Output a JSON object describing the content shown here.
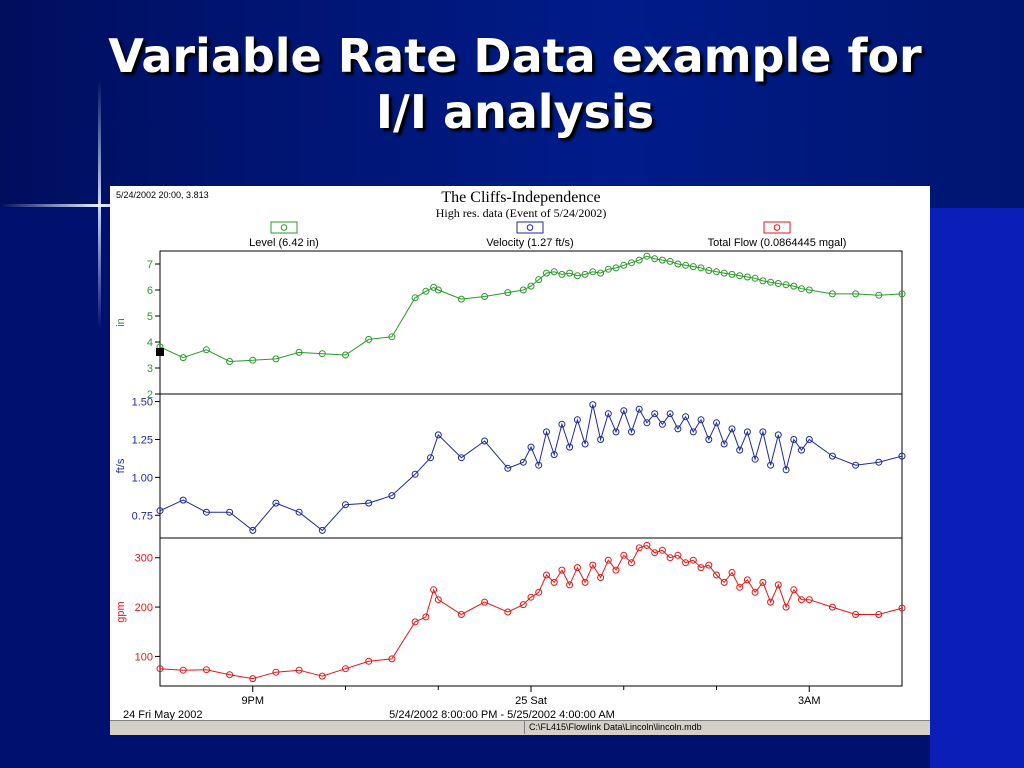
{
  "slide": {
    "title_line1": "Variable Rate Data example for",
    "title_line2": "I/I analysis"
  },
  "colors": {
    "level": "#2a9a2a",
    "velocity": "#1c2a9a",
    "flow": "#e01818"
  },
  "window": {
    "cursor_readout": "5/24/2002 20:00, 3.813",
    "status_path": "C:\\FL415\\Flowlink Data\\Lincoln\\lincoln.mdb"
  },
  "chart_data": {
    "type": "line",
    "title": "The Cliffs-Independence",
    "subtitle": "High res. data (Event of 5/24/2002)",
    "legend": [
      {
        "label": "Level (6.42 in)",
        "color": "#2a9a2a"
      },
      {
        "label": "Velocity (1.27 ft/s)",
        "color": "#1c2a9a"
      },
      {
        "label": "Total Flow (0.0864445 mgal)",
        "color": "#e01818"
      }
    ],
    "x_start_label": "24 Fri May 2002",
    "x_range_label": "5/24/2002 8:00:00 PM - 5/25/2002 4:00:00 AM",
    "xlim": [
      "2002-05-24 20:00",
      "2002-05-25 04:00"
    ],
    "x_ticks": [
      {
        "time": "2002-05-24 21:00",
        "label": "9PM"
      },
      {
        "time": "2002-05-25 00:00",
        "label": "25 Sat"
      },
      {
        "time": "2002-05-25 03:00",
        "label": "3AM"
      }
    ],
    "x_minor_ticks": [
      "2002-05-24 22:00",
      "2002-05-24 23:00",
      "2002-05-25 01:00",
      "2002-05-25 02:00"
    ],
    "panels": [
      {
        "name": "Level",
        "ylabel": "in",
        "ylim": [
          2,
          7.5
        ],
        "yticks": [
          {
            "value": 2,
            "label": "2"
          },
          {
            "value": 3,
            "label": "3"
          },
          {
            "value": 4,
            "label": "4"
          },
          {
            "value": 5,
            "label": "5"
          },
          {
            "value": 6,
            "label": "6"
          },
          {
            "value": 7,
            "label": "7"
          }
        ],
        "color": "#2a9a2a",
        "points": [
          [
            "2002-05-24 20:00",
            3.81
          ],
          [
            "2002-05-24 20:15",
            3.4
          ],
          [
            "2002-05-24 20:30",
            3.7
          ],
          [
            "2002-05-24 20:45",
            3.25
          ],
          [
            "2002-05-24 21:00",
            3.3
          ],
          [
            "2002-05-24 21:15",
            3.35
          ],
          [
            "2002-05-24 21:30",
            3.6
          ],
          [
            "2002-05-24 21:45",
            3.55
          ],
          [
            "2002-05-24 22:00",
            3.5
          ],
          [
            "2002-05-24 22:15",
            4.1
          ],
          [
            "2002-05-24 22:30",
            4.2
          ],
          [
            "2002-05-24 22:45",
            5.7
          ],
          [
            "2002-05-24 22:52",
            5.95
          ],
          [
            "2002-05-24 22:57",
            6.1
          ],
          [
            "2002-05-24 23:00",
            6.0
          ],
          [
            "2002-05-24 23:15",
            5.65
          ],
          [
            "2002-05-24 23:30",
            5.75
          ],
          [
            "2002-05-24 23:45",
            5.9
          ],
          [
            "2002-05-24 23:55",
            6.0
          ],
          [
            "2002-05-25 00:00",
            6.15
          ],
          [
            "2002-05-25 00:05",
            6.4
          ],
          [
            "2002-05-25 00:10",
            6.65
          ],
          [
            "2002-05-25 00:15",
            6.7
          ],
          [
            "2002-05-25 00:20",
            6.6
          ],
          [
            "2002-05-25 00:25",
            6.65
          ],
          [
            "2002-05-25 00:30",
            6.55
          ],
          [
            "2002-05-25 00:35",
            6.6
          ],
          [
            "2002-05-25 00:40",
            6.7
          ],
          [
            "2002-05-25 00:45",
            6.65
          ],
          [
            "2002-05-25 00:50",
            6.8
          ],
          [
            "2002-05-25 00:55",
            6.85
          ],
          [
            "2002-05-25 01:00",
            6.95
          ],
          [
            "2002-05-25 01:05",
            7.05
          ],
          [
            "2002-05-25 01:10",
            7.15
          ],
          [
            "2002-05-25 01:15",
            7.3
          ],
          [
            "2002-05-25 01:20",
            7.2
          ],
          [
            "2002-05-25 01:25",
            7.15
          ],
          [
            "2002-05-25 01:30",
            7.1
          ],
          [
            "2002-05-25 01:35",
            7.0
          ],
          [
            "2002-05-25 01:40",
            6.95
          ],
          [
            "2002-05-25 01:45",
            6.9
          ],
          [
            "2002-05-25 01:50",
            6.85
          ],
          [
            "2002-05-25 01:55",
            6.75
          ],
          [
            "2002-05-25 02:00",
            6.7
          ],
          [
            "2002-05-25 02:05",
            6.65
          ],
          [
            "2002-05-25 02:10",
            6.6
          ],
          [
            "2002-05-25 02:15",
            6.55
          ],
          [
            "2002-05-25 02:20",
            6.5
          ],
          [
            "2002-05-25 02:25",
            6.45
          ],
          [
            "2002-05-25 02:30",
            6.35
          ],
          [
            "2002-05-25 02:35",
            6.3
          ],
          [
            "2002-05-25 02:40",
            6.25
          ],
          [
            "2002-05-25 02:45",
            6.2
          ],
          [
            "2002-05-25 02:50",
            6.15
          ],
          [
            "2002-05-25 02:55",
            6.05
          ],
          [
            "2002-05-25 03:00",
            6.0
          ],
          [
            "2002-05-25 03:15",
            5.85
          ],
          [
            "2002-05-25 03:30",
            5.85
          ],
          [
            "2002-05-25 03:45",
            5.8
          ],
          [
            "2002-05-25 04:00",
            5.85
          ]
        ]
      },
      {
        "name": "Velocity",
        "ylabel": "ft/s",
        "ylim": [
          0.6,
          1.55
        ],
        "yticks": [
          {
            "value": 0.75,
            "label": "0.75"
          },
          {
            "value": 1.0,
            "label": "1.00"
          },
          {
            "value": 1.25,
            "label": "1.25"
          },
          {
            "value": 1.5,
            "label": "1.50"
          }
        ],
        "color": "#1c2a9a",
        "points": [
          [
            "2002-05-24 20:00",
            0.78
          ],
          [
            "2002-05-24 20:15",
            0.85
          ],
          [
            "2002-05-24 20:30",
            0.77
          ],
          [
            "2002-05-24 20:45",
            0.77
          ],
          [
            "2002-05-24 21:00",
            0.65
          ],
          [
            "2002-05-24 21:15",
            0.83
          ],
          [
            "2002-05-24 21:30",
            0.77
          ],
          [
            "2002-05-24 21:45",
            0.65
          ],
          [
            "2002-05-24 22:00",
            0.82
          ],
          [
            "2002-05-24 22:15",
            0.83
          ],
          [
            "2002-05-24 22:30",
            0.88
          ],
          [
            "2002-05-24 22:45",
            1.02
          ],
          [
            "2002-05-24 22:55",
            1.13
          ],
          [
            "2002-05-24 23:00",
            1.28
          ],
          [
            "2002-05-24 23:15",
            1.13
          ],
          [
            "2002-05-24 23:30",
            1.24
          ],
          [
            "2002-05-24 23:45",
            1.06
          ],
          [
            "2002-05-24 23:55",
            1.1
          ],
          [
            "2002-05-25 00:00",
            1.2
          ],
          [
            "2002-05-25 00:05",
            1.08
          ],
          [
            "2002-05-25 00:10",
            1.3
          ],
          [
            "2002-05-25 00:15",
            1.15
          ],
          [
            "2002-05-25 00:20",
            1.35
          ],
          [
            "2002-05-25 00:25",
            1.2
          ],
          [
            "2002-05-25 00:30",
            1.38
          ],
          [
            "2002-05-25 00:35",
            1.22
          ],
          [
            "2002-05-25 00:40",
            1.48
          ],
          [
            "2002-05-25 00:45",
            1.25
          ],
          [
            "2002-05-25 00:50",
            1.42
          ],
          [
            "2002-05-25 00:55",
            1.3
          ],
          [
            "2002-05-25 01:00",
            1.44
          ],
          [
            "2002-05-25 01:05",
            1.3
          ],
          [
            "2002-05-25 01:10",
            1.45
          ],
          [
            "2002-05-25 01:15",
            1.36
          ],
          [
            "2002-05-25 01:20",
            1.42
          ],
          [
            "2002-05-25 01:25",
            1.35
          ],
          [
            "2002-05-25 01:30",
            1.42
          ],
          [
            "2002-05-25 01:35",
            1.32
          ],
          [
            "2002-05-25 01:40",
            1.4
          ],
          [
            "2002-05-25 01:45",
            1.3
          ],
          [
            "2002-05-25 01:50",
            1.38
          ],
          [
            "2002-05-25 01:55",
            1.25
          ],
          [
            "2002-05-25 02:00",
            1.36
          ],
          [
            "2002-05-25 02:05",
            1.22
          ],
          [
            "2002-05-25 02:10",
            1.32
          ],
          [
            "2002-05-25 02:15",
            1.18
          ],
          [
            "2002-05-25 02:20",
            1.3
          ],
          [
            "2002-05-25 02:25",
            1.12
          ],
          [
            "2002-05-25 02:30",
            1.3
          ],
          [
            "2002-05-25 02:35",
            1.08
          ],
          [
            "2002-05-25 02:40",
            1.28
          ],
          [
            "2002-05-25 02:45",
            1.05
          ],
          [
            "2002-05-25 02:50",
            1.25
          ],
          [
            "2002-05-25 02:55",
            1.18
          ],
          [
            "2002-05-25 03:00",
            1.25
          ],
          [
            "2002-05-25 03:15",
            1.14
          ],
          [
            "2002-05-25 03:30",
            1.08
          ],
          [
            "2002-05-25 03:45",
            1.1
          ],
          [
            "2002-05-25 04:00",
            1.14
          ]
        ]
      },
      {
        "name": "Total Flow",
        "ylabel": "gpm",
        "ylim": [
          40,
          340
        ],
        "yticks": [
          {
            "value": 100,
            "label": "100"
          },
          {
            "value": 200,
            "label": "200"
          },
          {
            "value": 300,
            "label": "300"
          }
        ],
        "color": "#e01818",
        "points": [
          [
            "2002-05-24 20:00",
            75
          ],
          [
            "2002-05-24 20:15",
            72
          ],
          [
            "2002-05-24 20:30",
            73
          ],
          [
            "2002-05-24 20:45",
            63
          ],
          [
            "2002-05-24 21:00",
            55
          ],
          [
            "2002-05-24 21:15",
            68
          ],
          [
            "2002-05-24 21:30",
            72
          ],
          [
            "2002-05-24 21:45",
            60
          ],
          [
            "2002-05-24 22:00",
            75
          ],
          [
            "2002-05-24 22:15",
            90
          ],
          [
            "2002-05-24 22:30",
            95
          ],
          [
            "2002-05-24 22:45",
            170
          ],
          [
            "2002-05-24 22:52",
            180
          ],
          [
            "2002-05-24 22:57",
            235
          ],
          [
            "2002-05-24 23:00",
            215
          ],
          [
            "2002-05-24 23:15",
            185
          ],
          [
            "2002-05-24 23:30",
            210
          ],
          [
            "2002-05-24 23:45",
            190
          ],
          [
            "2002-05-24 23:55",
            205
          ],
          [
            "2002-05-25 00:00",
            220
          ],
          [
            "2002-05-25 00:05",
            230
          ],
          [
            "2002-05-25 00:10",
            265
          ],
          [
            "2002-05-25 00:15",
            250
          ],
          [
            "2002-05-25 00:20",
            275
          ],
          [
            "2002-05-25 00:25",
            245
          ],
          [
            "2002-05-25 00:30",
            280
          ],
          [
            "2002-05-25 00:35",
            250
          ],
          [
            "2002-05-25 00:40",
            285
          ],
          [
            "2002-05-25 00:45",
            260
          ],
          [
            "2002-05-25 00:50",
            295
          ],
          [
            "2002-05-25 00:55",
            275
          ],
          [
            "2002-05-25 01:00",
            305
          ],
          [
            "2002-05-25 01:05",
            290
          ],
          [
            "2002-05-25 01:10",
            320
          ],
          [
            "2002-05-25 01:15",
            325
          ],
          [
            "2002-05-25 01:20",
            310
          ],
          [
            "2002-05-25 01:25",
            315
          ],
          [
            "2002-05-25 01:30",
            300
          ],
          [
            "2002-05-25 01:35",
            305
          ],
          [
            "2002-05-25 01:40",
            290
          ],
          [
            "2002-05-25 01:45",
            295
          ],
          [
            "2002-05-25 01:50",
            280
          ],
          [
            "2002-05-25 01:55",
            285
          ],
          [
            "2002-05-25 02:00",
            265
          ],
          [
            "2002-05-25 02:05",
            250
          ],
          [
            "2002-05-25 02:10",
            270
          ],
          [
            "2002-05-25 02:15",
            240
          ],
          [
            "2002-05-25 02:20",
            255
          ],
          [
            "2002-05-25 02:25",
            230
          ],
          [
            "2002-05-25 02:30",
            250
          ],
          [
            "2002-05-25 02:35",
            210
          ],
          [
            "2002-05-25 02:40",
            245
          ],
          [
            "2002-05-25 02:45",
            200
          ],
          [
            "2002-05-25 02:50",
            235
          ],
          [
            "2002-05-25 02:55",
            215
          ],
          [
            "2002-05-25 03:00",
            215
          ],
          [
            "2002-05-25 03:15",
            200
          ],
          [
            "2002-05-25 03:30",
            185
          ],
          [
            "2002-05-25 03:45",
            185
          ],
          [
            "2002-05-25 04:00",
            198
          ]
        ]
      }
    ]
  }
}
